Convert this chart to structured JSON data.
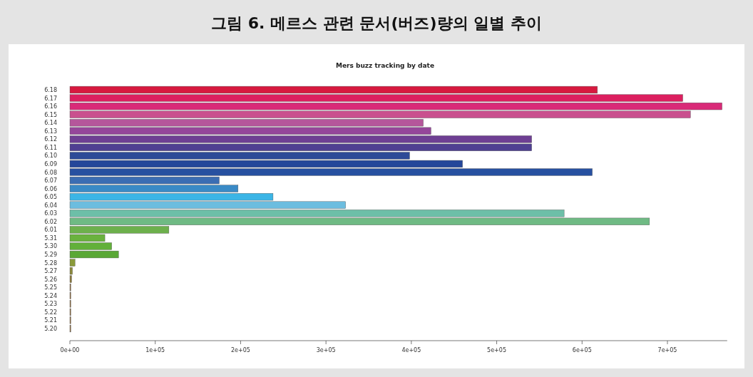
{
  "chart_data": {
    "type": "bar",
    "orientation": "horizontal",
    "title": "그림 6. 메르스 관련 문서(버즈)량의 일별 추이",
    "subtitle": "Mers buzz tracking by date",
    "categories": [
      "6.18",
      "6.17",
      "6.16",
      "6.15",
      "6.14",
      "6.13",
      "6.12",
      "6.11",
      "6.10",
      "6.09",
      "6.08",
      "6.07",
      "6.06",
      "6.05",
      "6.04",
      "6.03",
      "6.02",
      "6.01",
      "5.31",
      "5.30",
      "5.29",
      "5.28",
      "5.27",
      "5.26",
      "5.25",
      "5.24",
      "5.23",
      "5.22",
      "5.21",
      "5.20"
    ],
    "values": [
      618000,
      718000,
      764000,
      727000,
      414000,
      423000,
      541000,
      541000,
      398000,
      460000,
      612000,
      175000,
      197000,
      238000,
      323000,
      579000,
      679000,
      116000,
      41000,
      49000,
      57000,
      6000,
      3000,
      2000,
      1000,
      1000,
      1000,
      1000,
      1000,
      1000
    ],
    "colors": [
      "#d7193f",
      "#dc1f5f",
      "#d92a78",
      "#c9508e",
      "#b5569b",
      "#95469a",
      "#6e3f93",
      "#4f3f92",
      "#2d4a97",
      "#24479a",
      "#2750a0",
      "#3b6db3",
      "#3a8ac6",
      "#3bb5e6",
      "#6cbddf",
      "#6dbfa8",
      "#6fba84",
      "#6db04c",
      "#6ab23e",
      "#62b03a",
      "#5aa836",
      "#8a9a3a",
      "#8c8a3c",
      "#8c7a3c",
      "#8c6a3c",
      "#8c6a3c",
      "#8c6a3c",
      "#8c6a3c",
      "#8c6a3c",
      "#8c6a3c"
    ],
    "xlim": [
      0,
      770000
    ],
    "xticks": [
      {
        "value": 0,
        "label": "0e+00"
      },
      {
        "value": 100000,
        "label": "1e+05"
      },
      {
        "value": 200000,
        "label": "2e+05"
      },
      {
        "value": 300000,
        "label": "3e+05"
      },
      {
        "value": 400000,
        "label": "4e+05"
      },
      {
        "value": 500000,
        "label": "5e+05"
      },
      {
        "value": 600000,
        "label": "6e+05"
      },
      {
        "value": 700000,
        "label": "7e+05"
      }
    ]
  }
}
